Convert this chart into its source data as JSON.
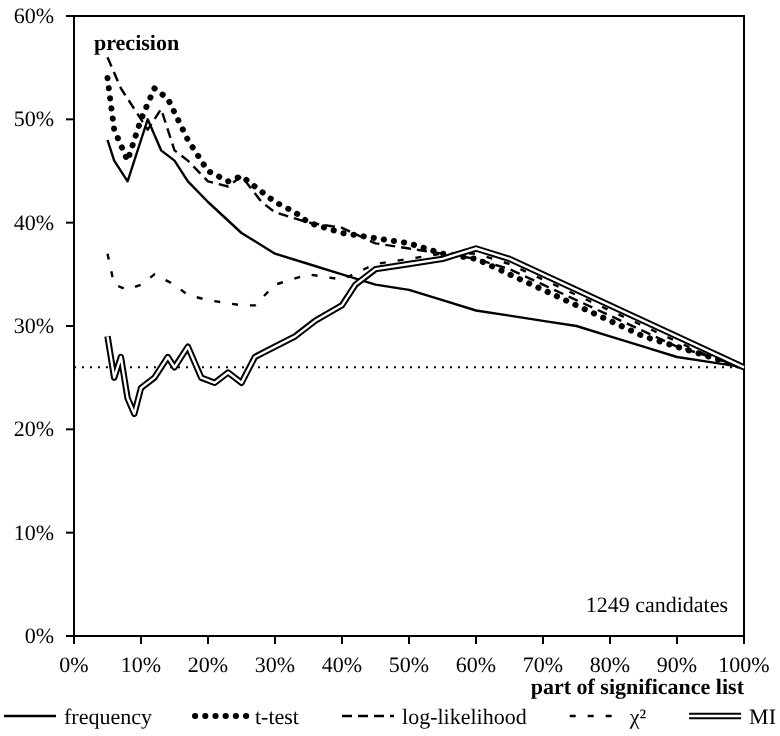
{
  "chart_data": {
    "type": "line",
    "ylabel": "precision",
    "xlabel": "part of significance list",
    "annotations": [
      "1249 candidates"
    ],
    "xlim": [
      0,
      100
    ],
    "ylim": [
      0,
      60
    ],
    "xticks": [
      {
        "value": 0,
        "label": "0%"
      },
      {
        "value": 10,
        "label": "10%"
      },
      {
        "value": 20,
        "label": "20%"
      },
      {
        "value": 30,
        "label": "30%"
      },
      {
        "value": 40,
        "label": "40%"
      },
      {
        "value": 50,
        "label": "50%"
      },
      {
        "value": 60,
        "label": "60%"
      },
      {
        "value": 70,
        "label": "70%"
      },
      {
        "value": 80,
        "label": "80%"
      },
      {
        "value": 90,
        "label": "90%"
      },
      {
        "value": 100,
        "label": "100%"
      }
    ],
    "yticks": [
      {
        "value": 0,
        "label": "0%"
      },
      {
        "value": 10,
        "label": "10%"
      },
      {
        "value": 20,
        "label": "20%"
      },
      {
        "value": 30,
        "label": "30%"
      },
      {
        "value": 40,
        "label": "40%"
      },
      {
        "value": 50,
        "label": "50%"
      },
      {
        "value": 60,
        "label": "60%"
      }
    ],
    "ref_lines": [
      {
        "axis": "y",
        "value": 26,
        "color": "#000000",
        "line_style": "dotted"
      }
    ],
    "legend": "bottom",
    "grid": false,
    "series": [
      {
        "name": "frequency",
        "color": "#000000",
        "line_style": "solid",
        "x": [
          5,
          6,
          8,
          10,
          11,
          13,
          15,
          17,
          20,
          25,
          30,
          35,
          40,
          45,
          50,
          55,
          60,
          65,
          70,
          75,
          80,
          85,
          90,
          95,
          100
        ],
        "values": [
          48,
          46,
          44,
          48,
          50,
          47,
          46,
          44,
          42,
          39,
          37,
          36,
          35,
          34,
          33.5,
          32.5,
          31.5,
          31,
          30.5,
          30,
          29,
          28,
          27,
          26.5,
          26
        ]
      },
      {
        "name": "t-test",
        "color": "#000000",
        "line_style": "dotted",
        "x": [
          5,
          6,
          8,
          10,
          12,
          14,
          17,
          20,
          23,
          25,
          28,
          30,
          33,
          35,
          40,
          45,
          50,
          55,
          60,
          65,
          70,
          75,
          80,
          85,
          90,
          95,
          100
        ],
        "values": [
          54,
          49,
          46,
          50,
          53,
          52,
          48,
          45,
          44,
          44.5,
          43,
          42,
          41,
          40,
          39,
          38.5,
          38,
          37,
          36.5,
          35,
          33.5,
          32,
          30.5,
          29,
          28,
          27,
          26
        ]
      },
      {
        "name": "log-likelihood",
        "color": "#000000",
        "line_style": "dashed",
        "x": [
          5,
          7,
          9,
          11,
          13,
          15,
          17,
          20,
          23,
          25,
          28,
          30,
          35,
          40,
          45,
          50,
          55,
          60,
          65,
          70,
          75,
          80,
          85,
          90,
          95,
          100
        ],
        "values": [
          56,
          53,
          51,
          49,
          51,
          47,
          46,
          44,
          43.5,
          44.5,
          42,
          41,
          40,
          39.5,
          38,
          37.5,
          37,
          36.5,
          35.5,
          34,
          32.5,
          31,
          29.5,
          28,
          27,
          26
        ]
      },
      {
        "name": "χ²",
        "color": "#000000",
        "line_style": "dashed",
        "x": [
          5,
          6,
          8,
          10,
          12,
          15,
          17,
          20,
          25,
          27,
          30,
          35,
          40,
          45,
          50,
          55,
          60,
          65,
          70,
          75,
          80,
          85,
          90,
          95,
          100
        ],
        "values": [
          37,
          34,
          33.5,
          34,
          35,
          34,
          33,
          32.5,
          32,
          32,
          34,
          35,
          34.5,
          36,
          36.5,
          37,
          37,
          36,
          34.5,
          33,
          31.5,
          30,
          28.5,
          27,
          26
        ]
      },
      {
        "name": "MI",
        "color": "#000000",
        "line_style": "solid",
        "x": [
          5,
          6,
          7,
          8,
          9,
          10,
          12,
          14,
          15,
          17,
          19,
          21,
          23,
          25,
          27,
          30,
          33,
          36,
          40,
          42,
          45,
          50,
          55,
          60,
          65,
          70,
          75,
          80,
          85,
          90,
          95,
          100
        ],
        "values": [
          29,
          25,
          27,
          23,
          21.5,
          24,
          25,
          27,
          26,
          28,
          25,
          24.5,
          25.5,
          24.5,
          27,
          28,
          29,
          30.5,
          32,
          34,
          35.5,
          36,
          36.5,
          37.5,
          36.5,
          35,
          33.5,
          32,
          30.5,
          29,
          27.5,
          26
        ]
      }
    ]
  }
}
